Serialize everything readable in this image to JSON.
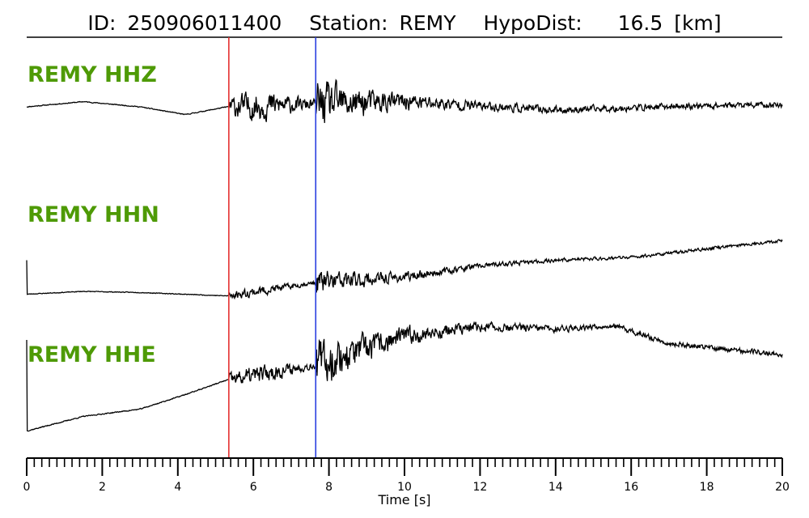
{
  "chart_data": {
    "type": "line",
    "title": {
      "id_label": "ID:",
      "id_value": "250906011400",
      "station_label": "Station:",
      "station_value": "REMY",
      "dist_label": "HypoDist:",
      "dist_value": "16.5",
      "dist_unit": "[km]"
    },
    "xlabel": "Time [s]",
    "xlim": [
      0,
      20
    ],
    "xticks": [
      0,
      2,
      4,
      6,
      8,
      10,
      12,
      14,
      16,
      18,
      20
    ],
    "minor_tick_step": 0.2,
    "grid": false,
    "channel_label_color": "#4e9a06",
    "p_pick": {
      "time": 5.35,
      "color": "#e53030"
    },
    "s_pick": {
      "time": 7.65,
      "color": "#2a3fe0"
    },
    "series": [
      {
        "name": "REMY HHZ",
        "color": "#000000",
        "trend": [
          [
            0,
            0.0
          ],
          [
            1.5,
            0.08
          ],
          [
            3,
            0.0
          ],
          [
            4.2,
            -0.12
          ],
          [
            5.3,
            0.0
          ],
          [
            10,
            0.08
          ],
          [
            14,
            -0.05
          ],
          [
            18,
            0.02
          ],
          [
            20,
            0.03
          ]
        ],
        "noise_pre": 0.01,
        "noise_p": 0.32,
        "noise_s": 0.55,
        "coda_decay": 0.55,
        "coda_floor": 0.07,
        "seed": 11
      },
      {
        "name": "REMY HHN",
        "color": "#000000",
        "trend": [
          [
            0,
            -0.05
          ],
          [
            1.5,
            0.0
          ],
          [
            3,
            -0.02
          ],
          [
            5.3,
            -0.08
          ],
          [
            7.6,
            0.15
          ],
          [
            10,
            0.25
          ],
          [
            12,
            0.45
          ],
          [
            14,
            0.55
          ],
          [
            16,
            0.6
          ],
          [
            18,
            0.75
          ],
          [
            20,
            0.9
          ]
        ],
        "spike": 0.55,
        "noise_pre": 0.01,
        "noise_p": 0.12,
        "noise_s": 0.35,
        "coda_decay": 0.55,
        "coda_floor": 0.04,
        "seed": 23
      },
      {
        "name": "REMY HHE",
        "color": "#000000",
        "trend": [
          [
            0,
            -0.75
          ],
          [
            1.5,
            -0.55
          ],
          [
            3,
            -0.45
          ],
          [
            4.2,
            -0.25
          ],
          [
            5.3,
            -0.05
          ],
          [
            7.6,
            0.15
          ],
          [
            10,
            0.55
          ],
          [
            12,
            0.68
          ],
          [
            14,
            0.65
          ],
          [
            15.5,
            0.7
          ],
          [
            17,
            0.45
          ],
          [
            20,
            0.3
          ]
        ],
        "spike": 0.5,
        "noise_pre": 0.01,
        "noise_p": 0.18,
        "noise_s": 0.5,
        "coda_decay": 0.5,
        "coda_floor": 0.05,
        "seed": 37
      }
    ]
  }
}
